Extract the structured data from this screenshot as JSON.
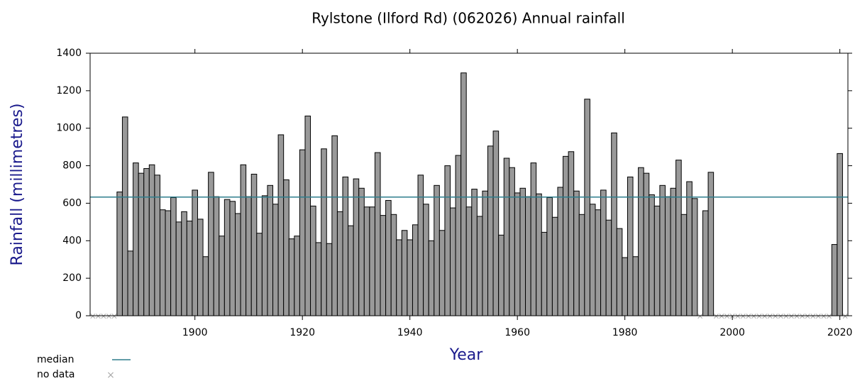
{
  "chart_data": {
    "type": "bar",
    "title": "Rylstone (Ilford Rd) (062026) Annual rainfall",
    "x_label": "Year",
    "y_label": "Rainfall (millimetres)",
    "x": [
      1881,
      1882,
      1883,
      1884,
      1885,
      1886,
      1887,
      1888,
      1889,
      1890,
      1891,
      1892,
      1893,
      1894,
      1895,
      1896,
      1897,
      1898,
      1899,
      1900,
      1901,
      1902,
      1903,
      1904,
      1905,
      1906,
      1907,
      1908,
      1909,
      1910,
      1911,
      1912,
      1913,
      1914,
      1915,
      1916,
      1917,
      1918,
      1919,
      1920,
      1921,
      1922,
      1923,
      1924,
      1925,
      1926,
      1927,
      1928,
      1929,
      1930,
      1931,
      1932,
      1933,
      1934,
      1935,
      1936,
      1937,
      1938,
      1939,
      1940,
      1941,
      1942,
      1943,
      1944,
      1945,
      1946,
      1947,
      1948,
      1949,
      1950,
      1951,
      1952,
      1953,
      1954,
      1955,
      1956,
      1957,
      1958,
      1959,
      1960,
      1961,
      1962,
      1963,
      1964,
      1965,
      1966,
      1967,
      1968,
      1969,
      1970,
      1971,
      1972,
      1973,
      1974,
      1975,
      1976,
      1977,
      1978,
      1979,
      1980,
      1981,
      1982,
      1983,
      1984,
      1985,
      1986,
      1987,
      1988,
      1989,
      1990,
      1991,
      1992,
      1993,
      1994,
      1995,
      1996,
      1997,
      1998,
      1999,
      2000,
      2001,
      2002,
      2003,
      2004,
      2005,
      2006,
      2007,
      2008,
      2009,
      2010,
      2011,
      2012,
      2013,
      2014,
      2015,
      2016,
      2017,
      2018,
      2019,
      2020,
      2021
    ],
    "values": [
      null,
      null,
      null,
      null,
      null,
      660,
      1060,
      345,
      815,
      760,
      785,
      805,
      750,
      565,
      560,
      630,
      500,
      555,
      505,
      670,
      515,
      315,
      765,
      635,
      425,
      620,
      610,
      545,
      805,
      635,
      755,
      440,
      640,
      695,
      595,
      965,
      725,
      410,
      425,
      885,
      1065,
      585,
      390,
      890,
      385,
      960,
      555,
      740,
      480,
      730,
      680,
      580,
      580,
      870,
      535,
      615,
      540,
      405,
      455,
      405,
      485,
      750,
      595,
      400,
      695,
      455,
      800,
      575,
      855,
      1295,
      580,
      675,
      530,
      665,
      905,
      985,
      430,
      840,
      790,
      655,
      680,
      635,
      815,
      650,
      445,
      630,
      525,
      685,
      850,
      875,
      665,
      540,
      1155,
      595,
      565,
      670,
      510,
      975,
      465,
      310,
      740,
      315,
      790,
      760,
      645,
      585,
      695,
      635,
      680,
      830,
      540,
      715,
      625,
      null,
      560,
      765,
      null,
      null,
      null,
      null,
      null,
      null,
      null,
      null,
      null,
      null,
      null,
      null,
      null,
      null,
      null,
      null,
      null,
      null,
      null,
      null,
      null,
      null,
      380,
      865,
      null
    ],
    "color": "#999999",
    "median": 633,
    "median_color": "#2e7d8c",
    "median_label": "median",
    "no_data_label": "no data",
    "xlim": [
      1880.5,
      2021.5
    ],
    "xticks": [
      1900,
      1920,
      1940,
      1960,
      1980,
      2000,
      2020
    ],
    "ylim": [
      0,
      1400
    ],
    "yticks": [
      0,
      200,
      400,
      600,
      800,
      1000,
      1200,
      1400
    ]
  }
}
